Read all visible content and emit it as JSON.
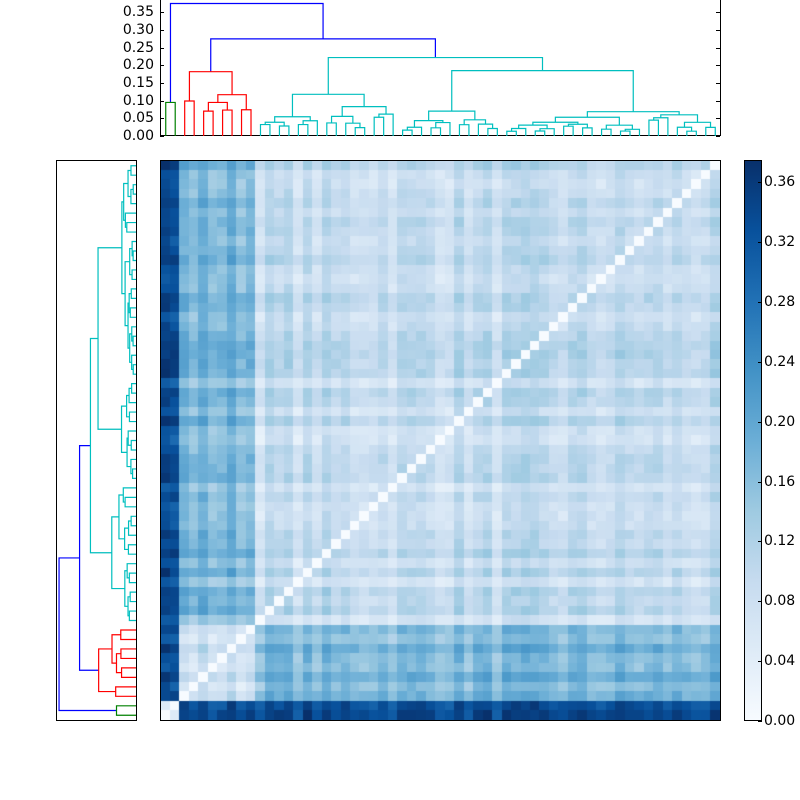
{
  "chart_data": {
    "type": "heatmap",
    "title": "",
    "description": "Clustered distance matrix heatmap with hierarchical dendrograms (top and left) and colorbar",
    "n": 59,
    "colormap": "Blues",
    "vmin": 0.0,
    "vmax": 0.375,
    "top_dendrogram": {
      "ylabel": "",
      "yticks": [
        "0.00",
        "0.05",
        "0.10",
        "0.15",
        "0.20",
        "0.25",
        "0.30",
        "0.35"
      ],
      "ytick_values": [
        0.0,
        0.05,
        0.1,
        0.15,
        0.2,
        0.25,
        0.3,
        0.35
      ],
      "ylim": [
        0,
        0.385
      ],
      "cluster_colors": [
        "#008000",
        "#ff0000",
        "#00bfbf",
        "#0000ff"
      ],
      "merge_heights": {
        "root": 0.375,
        "second": 0.275,
        "cyan_main": 0.222,
        "red_main": 0.182,
        "green": 0.095,
        "cyan_right": 0.15
      }
    },
    "colorbar": {
      "ticks": [
        "0.00",
        "0.04",
        "0.08",
        "0.12",
        "0.16",
        "0.20",
        "0.24",
        "0.28",
        "0.32",
        "0.36"
      ],
      "tick_values": [
        0.0,
        0.04,
        0.08,
        0.12,
        0.16,
        0.2,
        0.24,
        0.28,
        0.32,
        0.36
      ],
      "range": [
        0.0,
        0.375
      ]
    },
    "block_structure": {
      "green_cluster_size": 2,
      "red_cluster_size": 8,
      "cyan_cluster_size": 49,
      "diagonal": 0.0,
      "notes": "Rows/cols of green cluster (bottom/left) are darkest (~0.30-0.37) against others; red cluster moderately dark (~0.15-0.25); cyan cluster light (~0.05-0.12)."
    }
  }
}
